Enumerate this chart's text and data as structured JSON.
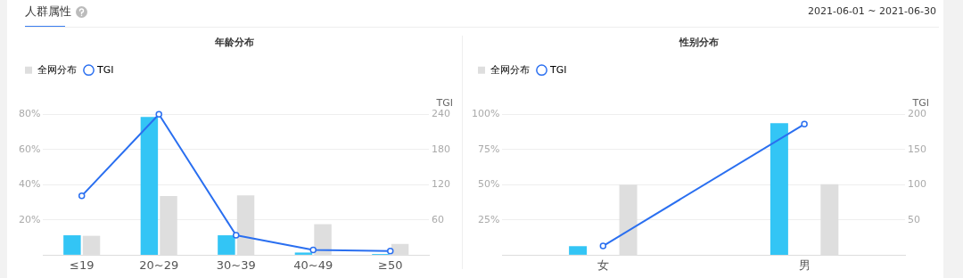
{
  "chart_data": [
    {
      "type": "bar",
      "title": "年龄分布",
      "annotations": [
        "人群属性"
      ],
      "y2label": "TGI",
      "categories": [
        "≤19",
        "20~29",
        "30~39",
        "40~49",
        "≥50"
      ],
      "series": [
        {
          "color": "#33c5f5",
          "values": [
            11.3,
            78.5,
            11.3,
            1.5,
            0.7
          ]
        },
        {
          "name": "全网分布",
          "color": "#dedede",
          "values": [
            11,
            33.6,
            34,
            17.6,
            6.4
          ]
        },
        {
          "name": "TGI",
          "type": "line",
          "axis": "y2",
          "color": "#2a6ff0",
          "values": [
            101,
            240,
            34,
            9,
            7
          ]
        }
      ],
      "ylim": [
        0,
        80
      ],
      "yticks": [
        {
          "value": 0,
          "label": null
        },
        {
          "value": 20,
          "label": "20%"
        },
        {
          "value": 40,
          "label": "40%"
        },
        {
          "value": 60,
          "label": "60%"
        },
        {
          "value": 80,
          "label": "80%"
        }
      ],
      "y2lim": [
        0,
        240
      ],
      "y2ticks": [
        {
          "value": 0,
          "label": null
        },
        60,
        120,
        180,
        240
      ],
      "grid": "y",
      "legend": "top left",
      "marker": "circle",
      "line_style": "solid"
    },
    {
      "type": "bar",
      "title": "性别分布",
      "annotations": [
        "2021-06-01 ~ 2021-06-30"
      ],
      "y2label": "TGI",
      "categories": [
        "女",
        "男"
      ],
      "series": [
        {
          "color": "#33c5f5",
          "values": [
            6.4,
            93.6
          ]
        },
        {
          "name": "全网分布",
          "color": "#dedede",
          "values": [
            50,
            50.3
          ]
        },
        {
          "name": "TGI",
          "type": "line",
          "axis": "y2",
          "color": "#2a6ff0",
          "values": [
            13,
            186
          ]
        }
      ],
      "ylim": [
        0,
        100
      ],
      "yticks": [
        {
          "value": 0,
          "label": null
        },
        {
          "value": 25,
          "label": "25%"
        },
        {
          "value": 50,
          "label": "50%"
        },
        {
          "value": 75,
          "label": "75%"
        },
        {
          "value": 100,
          "label": "100%"
        }
      ],
      "y2lim": [
        0,
        200
      ],
      "y2ticks": [
        {
          "value": 0,
          "label": null
        },
        50,
        100,
        150,
        200
      ],
      "grid": "y",
      "legend": "top left",
      "marker": "circle",
      "line_style": "solid"
    }
  ]
}
